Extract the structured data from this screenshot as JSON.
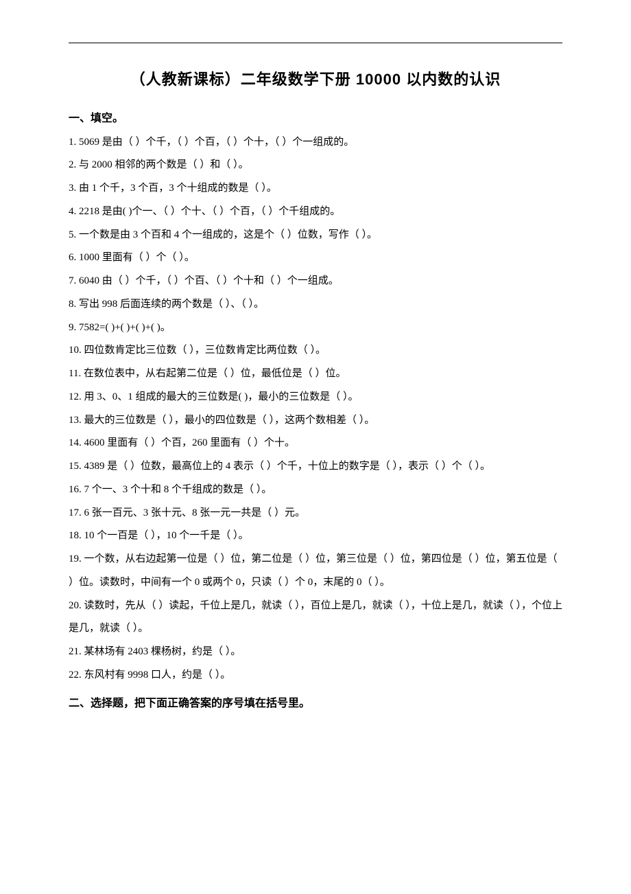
{
  "title": "（人教新课标）二年级数学下册 10000 以内数的认识",
  "section1_head": "一、填空。",
  "s1": {
    "q1": "1. 5069 是由（    ）个千，（    ）个百，（    ）个十，（    ）个一组成的。",
    "q2": "2. 与 2000 相邻的两个数是（    ）和（    ）。",
    "q3": "3. 由 1 个千，3 个百，3 个十组成的数是（    ）。",
    "q4": "4. 2218 是由(    )个一、（    ）个十、（    ）个百，（    ）个千组成的。",
    "q5": "5. 一个数是由 3 个百和 4 个一组成的，这是个（    ）位数，写作（    ）。",
    "q6": "6. 1000 里面有（    ）个（    ）。",
    "q7": "7. 6040 由（    ）个千，（    ）个百、（    ）个十和（    ）个一组成。",
    "q8": "8. 写出 998 后面连续的两个数是（      ）、（      ）。",
    "q9": "9. 7582=(      )+(      )+(      )+(      )。",
    "q10": "10. 四位数肯定比三位数（    ），三位数肯定比两位数（    ）。",
    "q11": "11. 在数位表中，从右起第二位是（      ）位，最低位是（      ）位。",
    "q12": "12. 用 3、0、1 组成的最大的三位数是(      )，最小的三位数是（      ）。",
    "q13": "13. 最大的三位数是（      ），最小的四位数是（      ），这两个数相差（      ）。",
    "q14": "14. 4600 里面有（      ）个百，260 里面有（      ）个十。",
    "q15": "15. 4389 是（    ）位数，最高位上的 4 表示（      ）个千，十位上的数字是（    ），表示（    ）个（    ）。",
    "q16": "16. 7 个一、3 个十和 8 个千组成的数是（    ）。",
    "q17": "17. 6 张一百元、3 张十元、8 张一元一共是（      ）元。",
    "q18": "18. 10 个一百是（    ），10 个一千是（    ）。",
    "q19": "19. 一个数，从右边起第一位是（    ）位，第二位是（    ）位，第三位是（    ）位，第四位是（    ）位，第五位是（    ）位。读数时，中间有一个 0 或两个 0，只读（    ）个 0，末尾的 0（    ）。",
    "q20": "20. 读数时，先从（      ）读起，千位上是几，就读（      ），百位上是几，就读（      ），十位上是几，就读（      ），个位上是几，就读（      ）。",
    "q21": "21. 某林场有 2403 棵杨树，约是（                ）。",
    "q22": "22. 东风村有 9998 口人，约是（                ）。"
  },
  "section2_head": "二、选择题，把下面正确答案的序号填在括号里。"
}
